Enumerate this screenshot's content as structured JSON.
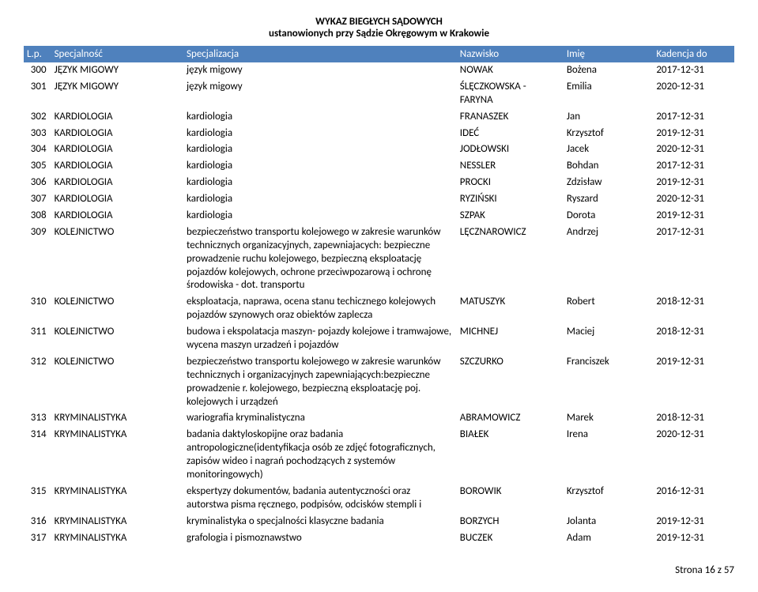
{
  "header": {
    "line1": "WYKAZ BIEGŁYCH SĄDOWYCH",
    "line2": "ustanowionych przy Sądzie Okręgowym w Krakowie"
  },
  "columns": {
    "lp": "L.p.",
    "spec": "Specjalność",
    "specz": "Specjalizacja",
    "nazw": "Nazwisko",
    "imie": "Imię",
    "kad": "Kadencja do"
  },
  "rows": [
    {
      "lp": "300",
      "spec": "JĘZYK MIGOWY",
      "specz": "język migowy",
      "nazw": "NOWAK",
      "imie": "Bożena",
      "kad": "2017-12-31"
    },
    {
      "lp": "301",
      "spec": "JĘZYK MIGOWY",
      "specz": "język migowy",
      "nazw": "ŚLĘCZKOWSKA - FARYNA",
      "imie": "Emilia",
      "kad": "2020-12-31"
    },
    {
      "lp": "302",
      "spec": "KARDIOLOGIA",
      "specz": "kardiologia",
      "nazw": "FRANASZEK",
      "imie": "Jan",
      "kad": "2017-12-31"
    },
    {
      "lp": "303",
      "spec": "KARDIOLOGIA",
      "specz": "kardiologia",
      "nazw": "IDEĆ",
      "imie": "Krzysztof",
      "kad": "2019-12-31"
    },
    {
      "lp": "304",
      "spec": "KARDIOLOGIA",
      "specz": "kardiologia",
      "nazw": "JODŁOWSKI",
      "imie": "Jacek",
      "kad": "2020-12-31"
    },
    {
      "lp": "305",
      "spec": "KARDIOLOGIA",
      "specz": "kardiologia",
      "nazw": "NESSLER",
      "imie": "Bohdan",
      "kad": "2017-12-31"
    },
    {
      "lp": "306",
      "spec": "KARDIOLOGIA",
      "specz": "kardiologia",
      "nazw": "PROCKI",
      "imie": "Zdzisław",
      "kad": "2019-12-31"
    },
    {
      "lp": "307",
      "spec": "KARDIOLOGIA",
      "specz": "kardiologia",
      "nazw": "RYZIŃSKI",
      "imie": "Ryszard",
      "kad": "2020-12-31"
    },
    {
      "lp": "308",
      "spec": "KARDIOLOGIA",
      "specz": "kardiologia",
      "nazw": "SZPAK",
      "imie": "Dorota",
      "kad": "2019-12-31"
    },
    {
      "lp": "309",
      "spec": "KOLEJNICTWO",
      "specz": "bezpieczeństwo transportu kolejowego w zakresie warunków technicznych organizacyjnych, zapewniajacych: bezpieczne prowadzenie ruchu kolejowego, bezpieczną eksploatację pojazdów kolejowych, ochrone przeciwpozarową i ochronę środowiska - dot. transportu",
      "nazw": "LĘCZNAROWICZ",
      "imie": "Andrzej",
      "kad": "2017-12-31"
    },
    {
      "lp": "310",
      "spec": "KOLEJNICTWO",
      "specz": "eksploatacja, naprawa, ocena stanu techicznego kolejowych pojazdów szynowych oraz obiektów zaplecza",
      "nazw": "MATUSZYK",
      "imie": "Robert",
      "kad": "2018-12-31"
    },
    {
      "lp": "311",
      "spec": "KOLEJNICTWO",
      "specz": "budowa i ekspolatacja maszyn- pojazdy kolejowe i tramwajowe, wycena maszyn urzadzeń i pojazdów",
      "nazw": "MICHNEJ",
      "imie": "Maciej",
      "kad": "2018-12-31"
    },
    {
      "lp": "312",
      "spec": "KOLEJNICTWO",
      "specz": "bezpieczeństwo transportu kolejowego w zakresie warunków technicznych i organizacyjnych zapewniających:bezpieczne prowadzenie r. kolejowego, bezpieczną eksploatację poj. kolejowych i urządzeń",
      "nazw": "SZCZURKO",
      "imie": "Franciszek",
      "kad": "2019-12-31"
    },
    {
      "lp": "313",
      "spec": "KRYMINALISTYKA",
      "specz": "wariografia kryminalistyczna",
      "nazw": "ABRAMOWICZ",
      "imie": "Marek",
      "kad": "2018-12-31"
    },
    {
      "lp": "314",
      "spec": "KRYMINALISTYKA",
      "specz": "badania daktyloskopijne oraz badania antropologiczne(identyfikacja osób ze zdjęć fotograficznych, zapisów wideo i nagrań pochodzących z systemów monitoringowych)",
      "nazw": "BIAŁEK",
      "imie": "Irena",
      "kad": "2020-12-31"
    },
    {
      "lp": "315",
      "spec": "KRYMINALISTYKA",
      "specz": "ekspertyzy dokumentów, badania autentyczności oraz autorstwa pisma ręcznego, podpisów, odcisków stempli i",
      "nazw": "BOROWIK",
      "imie": "Krzysztof",
      "kad": "2016-12-31"
    },
    {
      "lp": "316",
      "spec": "KRYMINALISTYKA",
      "specz": "kryminalistyka o specjalności klasyczne badania",
      "nazw": "BORZYCH",
      "imie": "Jolanta",
      "kad": "2019-12-31"
    },
    {
      "lp": "317",
      "spec": "KRYMINALISTYKA",
      "specz": "grafologia i pismoznawstwo",
      "nazw": "BUCZEK",
      "imie": "Adam",
      "kad": "2019-12-31"
    }
  ],
  "footer": "Strona 16 z 57"
}
